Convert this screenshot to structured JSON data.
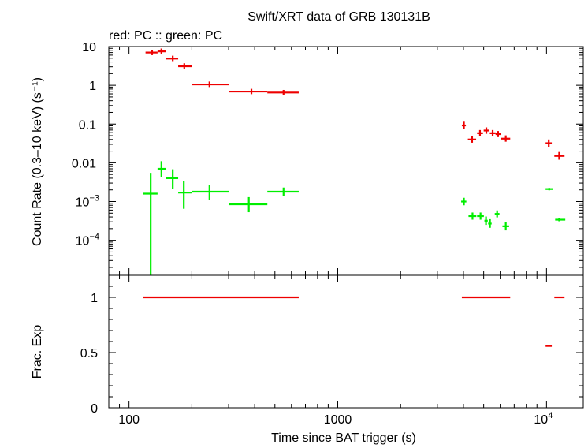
{
  "chart_data": [
    {
      "type": "scatter",
      "title": "Swift/XRT data of GRB 130131B",
      "subtitle": "red: PC  :: green: PC",
      "ylabel": "Count Rate (0.3–10 keV) (s⁻¹)",
      "x_scale": "log",
      "y_scale": "log",
      "xlim": [
        80,
        15000
      ],
      "ylim": [
        1.25e-05,
        10
      ],
      "y_ticks": [
        {
          "value": 10,
          "label": "10"
        },
        {
          "value": 1,
          "label": "1"
        },
        {
          "value": 0.1,
          "label": "0.1"
        },
        {
          "value": 0.01,
          "label": "0.01"
        },
        {
          "value": 0.001,
          "base": "10",
          "exp": "−3"
        },
        {
          "value": 0.0001,
          "base": "10",
          "exp": "−4"
        }
      ],
      "series": [
        {
          "color": "#ee0000",
          "points": [
            {
              "x": 129,
              "y": 7.0,
              "x_lo": 120,
              "x_hi": 137,
              "y_lo": 6.0,
              "y_hi": 8.2
            },
            {
              "x": 143,
              "y": 7.5,
              "x_lo": 137,
              "x_hi": 150,
              "y_lo": 6.4,
              "y_hi": 8.9
            },
            {
              "x": 162,
              "y": 4.9,
              "x_lo": 150,
              "x_hi": 172,
              "y_lo": 4.2,
              "y_hi": 5.8
            },
            {
              "x": 184,
              "y": 3.1,
              "x_lo": 172,
              "x_hi": 200,
              "y_lo": 2.6,
              "y_hi": 3.7
            },
            {
              "x": 243,
              "y": 1.05,
              "x_lo": 200,
              "x_hi": 300,
              "y_lo": 0.9,
              "y_hi": 1.25
            },
            {
              "x": 386,
              "y": 0.69,
              "x_lo": 300,
              "x_hi": 460,
              "y_lo": 0.59,
              "y_hi": 0.81
            },
            {
              "x": 550,
              "y": 0.65,
              "x_lo": 460,
              "x_hi": 650,
              "y_lo": 0.56,
              "y_hi": 0.76
            },
            {
              "x": 4020,
              "y": 0.092,
              "x_lo": 3930,
              "x_hi": 4110,
              "y_lo": 0.075,
              "y_hi": 0.115
            },
            {
              "x": 4400,
              "y": 0.04,
              "x_lo": 4200,
              "x_hi": 4600,
              "y_lo": 0.033,
              "y_hi": 0.049
            },
            {
              "x": 4800,
              "y": 0.058,
              "x_lo": 4650,
              "x_hi": 4960,
              "y_lo": 0.048,
              "y_hi": 0.07
            },
            {
              "x": 5150,
              "y": 0.068,
              "x_lo": 5000,
              "x_hi": 5300,
              "y_lo": 0.056,
              "y_hi": 0.082
            },
            {
              "x": 5520,
              "y": 0.058,
              "x_lo": 5350,
              "x_hi": 5700,
              "y_lo": 0.048,
              "y_hi": 0.07
            },
            {
              "x": 5860,
              "y": 0.055,
              "x_lo": 5700,
              "x_hi": 6020,
              "y_lo": 0.046,
              "y_hi": 0.066
            },
            {
              "x": 6380,
              "y": 0.042,
              "x_lo": 6050,
              "x_hi": 6700,
              "y_lo": 0.035,
              "y_hi": 0.051
            },
            {
              "x": 10250,
              "y": 0.032,
              "x_lo": 9900,
              "x_hi": 10600,
              "y_lo": 0.026,
              "y_hi": 0.04
            },
            {
              "x": 11500,
              "y": 0.015,
              "x_lo": 10900,
              "x_hi": 12200,
              "y_lo": 0.012,
              "y_hi": 0.019
            }
          ]
        },
        {
          "color": "#00ee00",
          "points": [
            {
              "x": 127,
              "y": 0.0016,
              "x_lo": 117,
              "x_hi": 137,
              "y_lo": 1.25e-05,
              "y_hi": 0.0055
            },
            {
              "x": 143,
              "y": 0.007,
              "x_lo": 137,
              "x_hi": 150,
              "y_lo": 0.0042,
              "y_hi": 0.011
            },
            {
              "x": 162,
              "y": 0.004,
              "x_lo": 150,
              "x_hi": 172,
              "y_lo": 0.0021,
              "y_hi": 0.0068
            },
            {
              "x": 183,
              "y": 0.0017,
              "x_lo": 172,
              "x_hi": 200,
              "y_lo": 0.00065,
              "y_hi": 0.0034
            },
            {
              "x": 243,
              "y": 0.0018,
              "x_lo": 200,
              "x_hi": 300,
              "y_lo": 0.0011,
              "y_hi": 0.0027
            },
            {
              "x": 375,
              "y": 0.00085,
              "x_lo": 300,
              "x_hi": 460,
              "y_lo": 0.00053,
              "y_hi": 0.0013
            },
            {
              "x": 550,
              "y": 0.0018,
              "x_lo": 460,
              "x_hi": 650,
              "y_lo": 0.0014,
              "y_hi": 0.0023
            },
            {
              "x": 4020,
              "y": 0.001,
              "x_lo": 3900,
              "x_hi": 4130,
              "y_lo": 0.0008,
              "y_hi": 0.00125
            },
            {
              "x": 4420,
              "y": 0.00042,
              "x_lo": 4230,
              "x_hi": 4610,
              "y_lo": 0.00034,
              "y_hi": 0.00052
            },
            {
              "x": 4830,
              "y": 0.00042,
              "x_lo": 4650,
              "x_hi": 5010,
              "y_lo": 0.00034,
              "y_hi": 0.00052
            },
            {
              "x": 5130,
              "y": 0.00032,
              "x_lo": 5040,
              "x_hi": 5230,
              "y_lo": 0.00025,
              "y_hi": 0.00041
            },
            {
              "x": 5360,
              "y": 0.00027,
              "x_lo": 5250,
              "x_hi": 5460,
              "y_lo": 0.00021,
              "y_hi": 0.00035
            },
            {
              "x": 5800,
              "y": 0.00048,
              "x_lo": 5650,
              "x_hi": 5950,
              "y_lo": 0.00039,
              "y_hi": 0.00059
            },
            {
              "x": 6380,
              "y": 0.00023,
              "x_lo": 6150,
              "x_hi": 6620,
              "y_lo": 0.00018,
              "y_hi": 0.00029
            },
            {
              "x": 10300,
              "y": 0.0021,
              "x_lo": 9900,
              "x_hi": 10700,
              "y_lo": 0.00195,
              "y_hi": 0.00225
            },
            {
              "x": 11500,
              "y": 0.00034,
              "x_lo": 11000,
              "x_hi": 12300,
              "y_lo": 0.00031,
              "y_hi": 0.00037
            }
          ]
        }
      ]
    },
    {
      "type": "scatter",
      "ylabel": "Frac. Exp",
      "xlabel": "Time since BAT trigger (s)",
      "x_scale": "log",
      "xlim": [
        80,
        15000
      ],
      "ylim": [
        0,
        1.2
      ],
      "x_ticks": [
        {
          "value": 100,
          "label": "100"
        },
        {
          "value": 1000,
          "label": "1000"
        },
        {
          "value": 10000,
          "base": "10",
          "exp": "4"
        }
      ],
      "y_ticks": [
        {
          "value": 0,
          "label": "0"
        },
        {
          "value": 0.5,
          "label": "0.5"
        },
        {
          "value": 1,
          "label": "1"
        }
      ],
      "segments": [
        {
          "x_lo": 117,
          "x_hi": 650,
          "y": 1.0,
          "color": "#ee0000"
        },
        {
          "x_lo": 3930,
          "x_hi": 6700,
          "y": 1.0,
          "color": "#ee0000"
        },
        {
          "x_lo": 9900,
          "x_hi": 10600,
          "y": 0.56,
          "color": "#ee0000"
        },
        {
          "x_lo": 10900,
          "x_hi": 12200,
          "y": 1.0,
          "color": "#ee0000"
        }
      ]
    }
  ]
}
